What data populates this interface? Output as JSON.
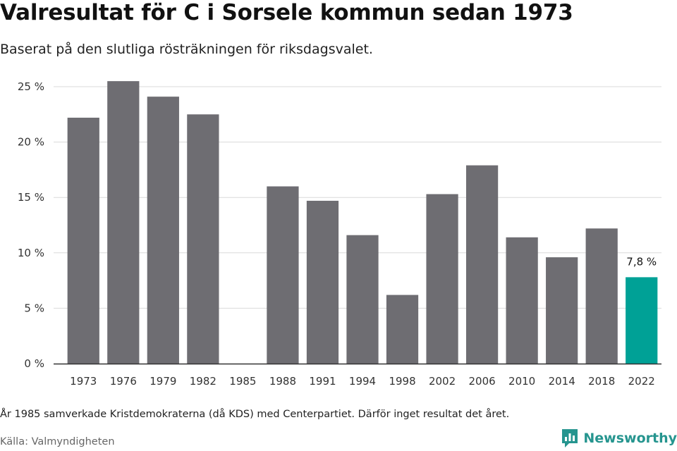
{
  "header": {
    "title": "Valresultat för C i Sorsele kommun sedan 1973",
    "subtitle": "Baserat på den slutliga rösträkningen för riksdagsvalet."
  },
  "footer": {
    "note": "År 1985 samverkade Kristdemokraterna (då KDS) med Centerpartiet. Därför inget resultat det året.",
    "source": "Källa: Valmyndigheten",
    "brand": "Newsworthy"
  },
  "colors": {
    "bar": "#6e6d72",
    "highlight": "#00a196",
    "brand": "#26958f",
    "grid": "#d9d9d9",
    "axis": "#333333"
  },
  "chart_data": {
    "type": "bar",
    "title": "Valresultat för C i Sorsele kommun sedan 1973",
    "subtitle": "Baserat på den slutliga rösträkningen för riksdagsvalet.",
    "xlabel": "",
    "ylabel": "",
    "categories": [
      "1973",
      "1976",
      "1979",
      "1982",
      "1985",
      "1988",
      "1991",
      "1994",
      "1998",
      "2002",
      "2006",
      "2010",
      "2014",
      "2018",
      "2022"
    ],
    "values": [
      22.2,
      25.5,
      24.1,
      22.5,
      null,
      16.0,
      14.7,
      11.6,
      6.2,
      15.3,
      17.9,
      11.4,
      9.6,
      12.2,
      7.8
    ],
    "ylim": [
      0,
      25
    ],
    "yticks": [
      0,
      5,
      10,
      15,
      20,
      25
    ],
    "ytick_labels": [
      "0 %",
      "5 %",
      "10 %",
      "15 %",
      "20 %",
      "25 %"
    ],
    "highlight_index": 14,
    "annotations": [
      {
        "category": "2022",
        "text": "7,8 %"
      }
    ],
    "grid": true,
    "legend": "none"
  }
}
